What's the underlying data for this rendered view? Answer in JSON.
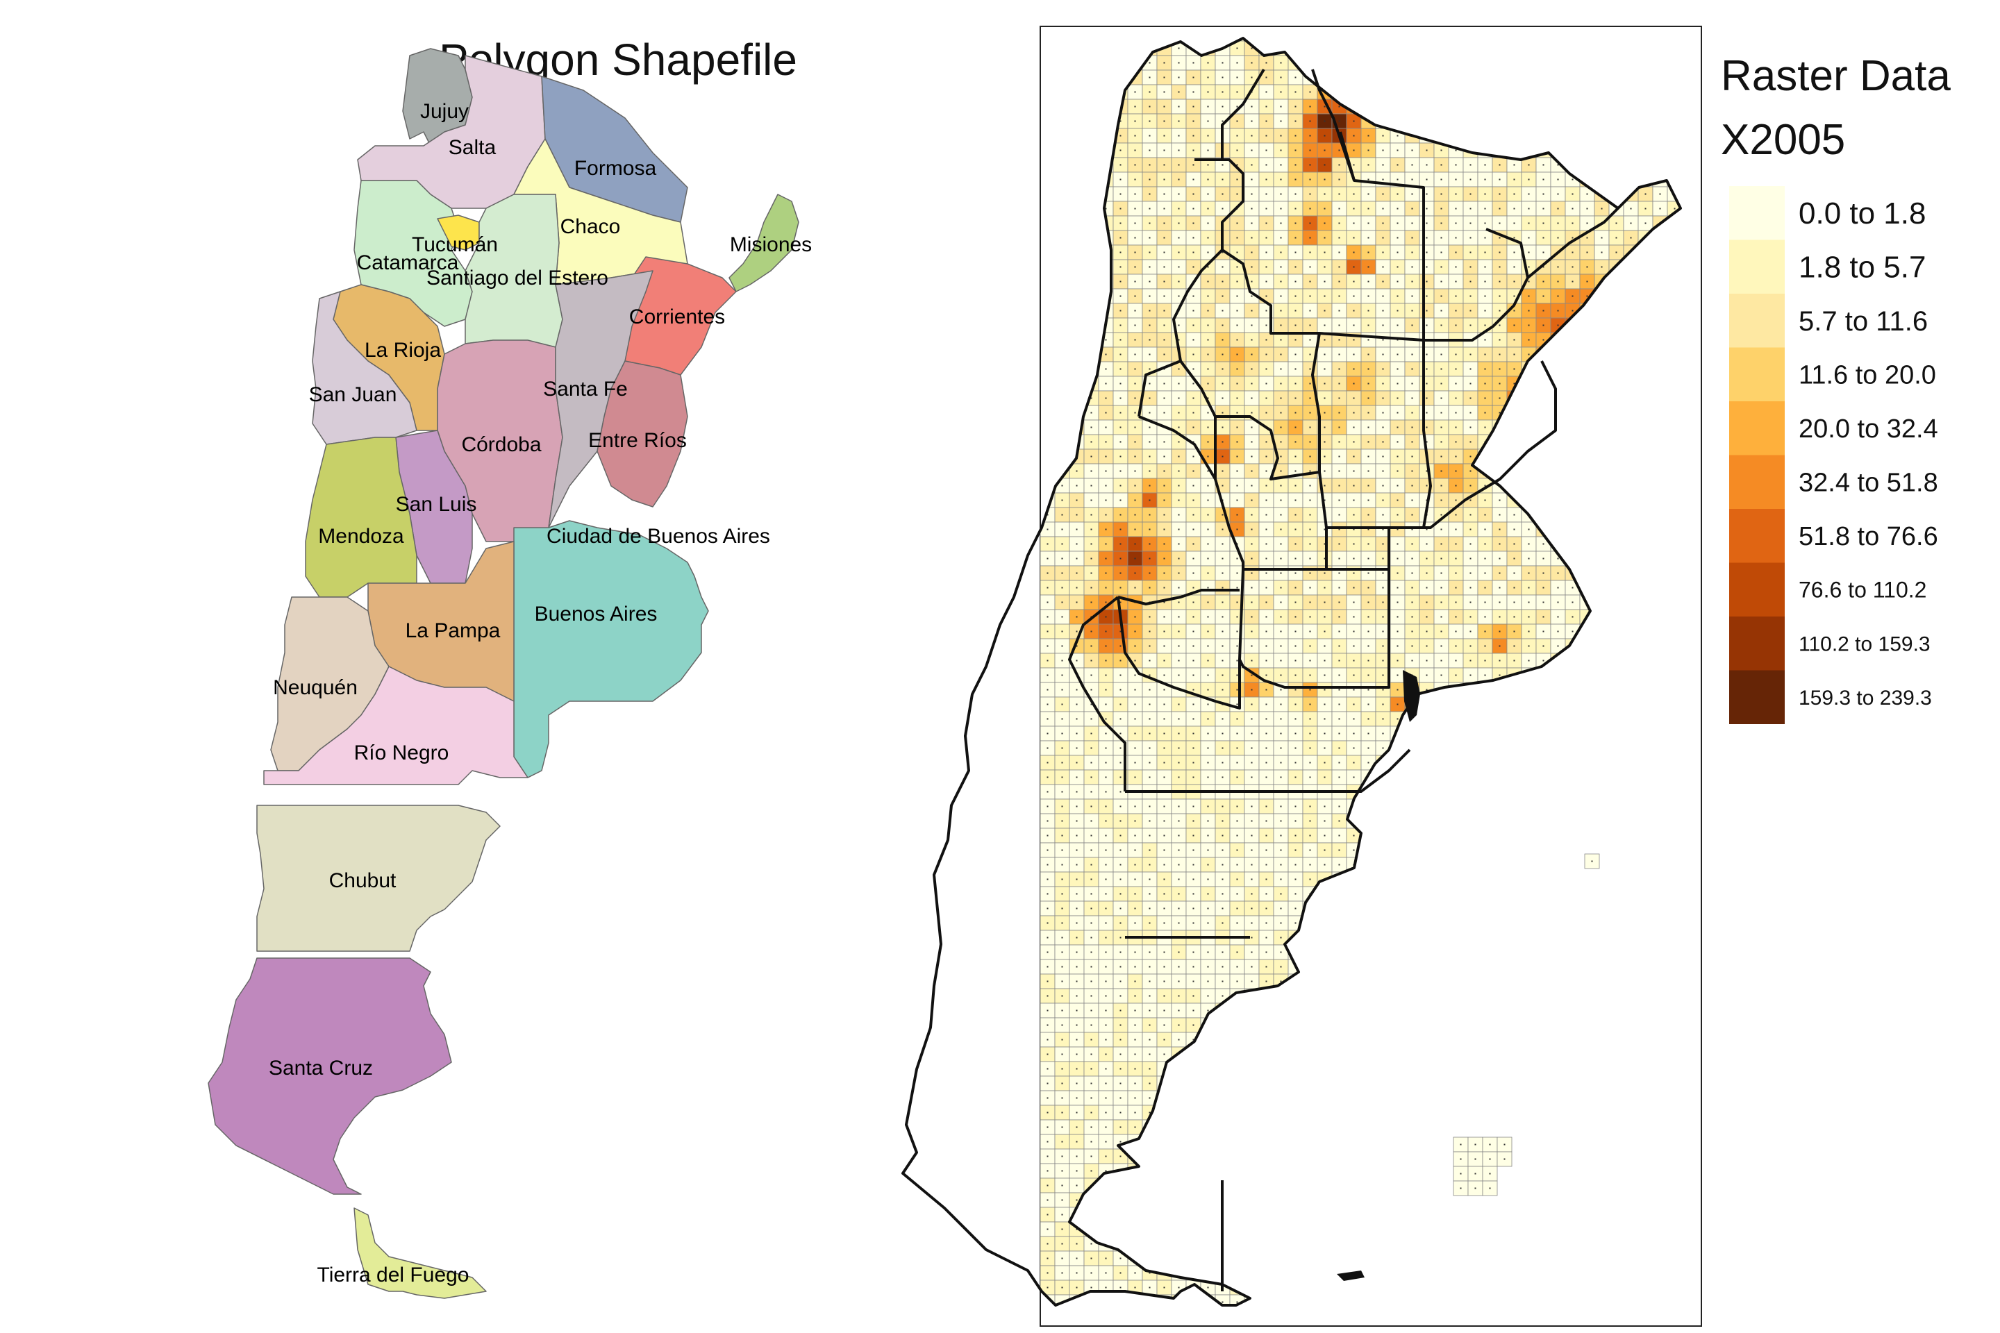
{
  "left_map": {
    "title": "Polygon Shapefile",
    "provinces": [
      {
        "name": "Jujuy",
        "color": "#a7adab"
      },
      {
        "name": "Salta",
        "color": "#e4cfdd"
      },
      {
        "name": "Formosa",
        "color": "#8fa1c0"
      },
      {
        "name": "Tucumán",
        "color": "#fde44c"
      },
      {
        "name": "Catamarca",
        "color": "#ccedcc"
      },
      {
        "name": "Santiago del Estero",
        "color": "#d4ecd0"
      },
      {
        "name": "Chaco",
        "color": "#fbfcbc"
      },
      {
        "name": "Misiones",
        "color": "#aed080"
      },
      {
        "name": "Corrientes",
        "color": "#f17f77"
      },
      {
        "name": "La Rioja",
        "color": "#e7b96a"
      },
      {
        "name": "San Juan",
        "color": "#d8ccd8"
      },
      {
        "name": "Córdoba",
        "color": "#d7a3b5"
      },
      {
        "name": "Santa Fe",
        "color": "#c4bbc2"
      },
      {
        "name": "Entre Ríos",
        "color": "#d08a91"
      },
      {
        "name": "San Luis",
        "color": "#c49ac6"
      },
      {
        "name": "Mendoza",
        "color": "#c7d068"
      },
      {
        "name": "Ciudad de Buenos Aires",
        "color": "#8dd3c7"
      },
      {
        "name": "Buenos Aires",
        "color": "#8dd3c7"
      },
      {
        "name": "La Pampa",
        "color": "#e1b27d"
      },
      {
        "name": "Neuquén",
        "color": "#e3d3c1"
      },
      {
        "name": "Río Negro",
        "color": "#f3cfe3"
      },
      {
        "name": "Chubut",
        "color": "#e1e0c4"
      },
      {
        "name": "Santa Cruz",
        "color": "#bf88bd"
      },
      {
        "name": "Tierra del Fuego",
        "color": "#e3ec98"
      }
    ]
  },
  "right_map": {
    "legend_title_1": "Raster Data",
    "legend_title_2": "X2005",
    "legend": [
      {
        "label": "0.0 to 1.8",
        "color": "#ffffe5"
      },
      {
        "label": "1.8 to 5.7",
        "color": "#fff7bc"
      },
      {
        "label": "5.7 to 11.6",
        "color": "#fee8a2"
      },
      {
        "label": "11.6 to 20.0",
        "color": "#fed26a"
      },
      {
        "label": "20.0 to 32.4",
        "color": "#feb03c"
      },
      {
        "label": "32.4 to 51.8",
        "color": "#f58b24"
      },
      {
        "label": "51.8 to 76.6",
        "color": "#e06513"
      },
      {
        "label": "76.6 to 110.2",
        "color": "#c04a06"
      },
      {
        "label": "110.2 to 159.3",
        "color": "#963404"
      },
      {
        "label": "159.3 to 239.3",
        "color": "#662506"
      }
    ]
  }
}
